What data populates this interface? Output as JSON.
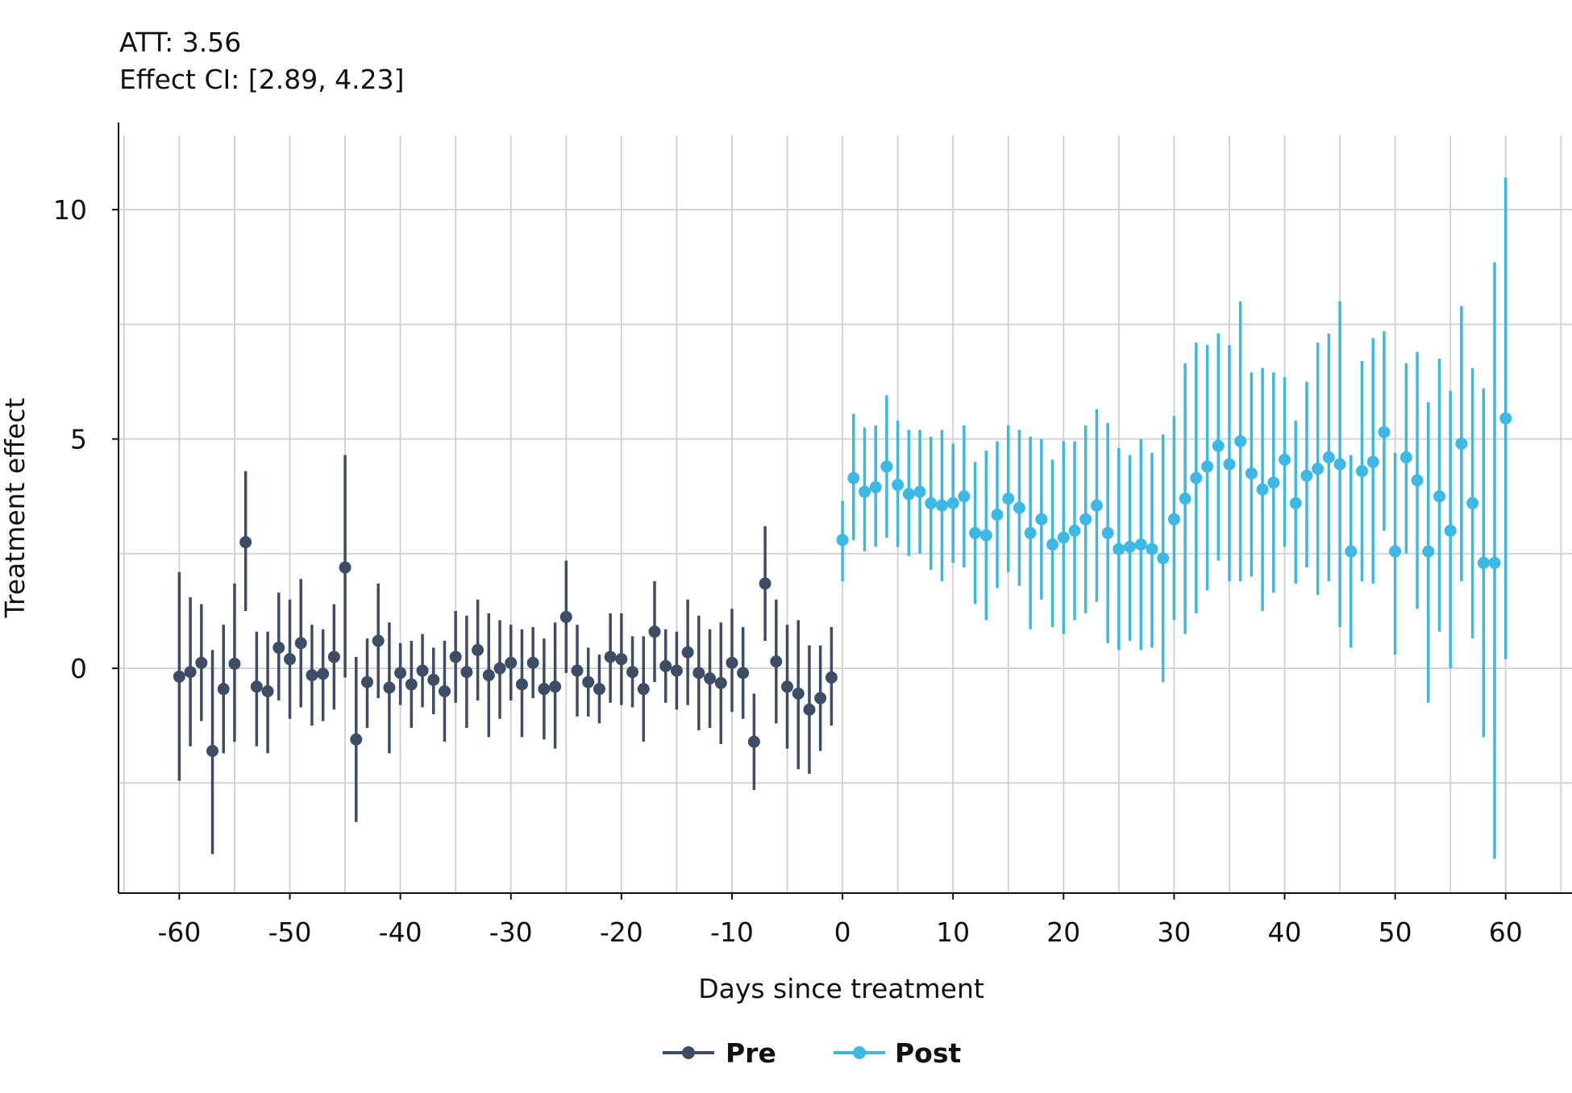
{
  "annotations": {
    "att": "ATT: 3.56",
    "ci": "Effect CI: [2.89, 4.23]"
  },
  "chart_data": {
    "type": "scatter",
    "xlabel": "Days since treatment",
    "ylabel": "Treatment effect",
    "xlim": [
      -65.5,
      66
    ],
    "ylim": [
      -4.9,
      11.9
    ],
    "x_ticks": [
      -60,
      -50,
      -40,
      -30,
      -20,
      -10,
      0,
      10,
      20,
      30,
      40,
      50,
      60
    ],
    "x_tick_labels": [
      "-60",
      "-50",
      "-40",
      "-30",
      "-20",
      "-10",
      "0",
      "10",
      "20",
      "30",
      "40",
      "50",
      "60"
    ],
    "y_ticks": [
      0,
      5,
      10
    ],
    "y_tick_labels": [
      "0",
      "5",
      "10"
    ],
    "x_gridlines": [
      -65,
      -60,
      -55,
      -50,
      -45,
      -40,
      -35,
      -30,
      -25,
      -20,
      -15,
      -10,
      -5,
      0,
      5,
      10,
      15,
      20,
      25,
      30,
      35,
      40,
      45,
      50,
      55,
      60,
      65
    ],
    "y_gridlines": [
      -2.5,
      0,
      2.5,
      5,
      7.5,
      10
    ],
    "grid": true,
    "legend": "bottom-center",
    "series": [
      {
        "name": "Pre",
        "color": "#3d4d66",
        "marker": "circle",
        "points": [
          {
            "x": -60,
            "y": -0.18,
            "lo": -2.45,
            "hi": 2.1
          },
          {
            "x": -59,
            "y": -0.08,
            "lo": -1.7,
            "hi": 1.55
          },
          {
            "x": -58,
            "y": 0.12,
            "lo": -1.15,
            "hi": 1.4
          },
          {
            "x": -57,
            "y": -1.8,
            "lo": -4.05,
            "hi": 0.4
          },
          {
            "x": -56,
            "y": -0.45,
            "lo": -1.85,
            "hi": 0.95
          },
          {
            "x": -55,
            "y": 0.1,
            "lo": -1.6,
            "hi": 1.85
          },
          {
            "x": -54,
            "y": 2.75,
            "lo": 1.25,
            "hi": 4.3
          },
          {
            "x": -53,
            "y": -0.4,
            "lo": -1.7,
            "hi": 0.8
          },
          {
            "x": -52,
            "y": -0.5,
            "lo": -1.85,
            "hi": 0.8
          },
          {
            "x": -51,
            "y": 0.45,
            "lo": -0.7,
            "hi": 1.65
          },
          {
            "x": -50,
            "y": 0.2,
            "lo": -1.1,
            "hi": 1.5
          },
          {
            "x": -49,
            "y": 0.55,
            "lo": -0.85,
            "hi": 1.95
          },
          {
            "x": -48,
            "y": -0.15,
            "lo": -1.25,
            "hi": 0.95
          },
          {
            "x": -47,
            "y": -0.12,
            "lo": -1.15,
            "hi": 0.85
          },
          {
            "x": -46,
            "y": 0.25,
            "lo": -0.9,
            "hi": 1.4
          },
          {
            "x": -45,
            "y": 2.2,
            "lo": -0.2,
            "hi": 4.65
          },
          {
            "x": -44,
            "y": -1.55,
            "lo": -3.35,
            "hi": 0.25
          },
          {
            "x": -43,
            "y": -0.3,
            "lo": -1.3,
            "hi": 0.65
          },
          {
            "x": -42,
            "y": 0.6,
            "lo": -0.65,
            "hi": 1.85
          },
          {
            "x": -41,
            "y": -0.42,
            "lo": -1.85,
            "hi": 1.0
          },
          {
            "x": -40,
            "y": -0.1,
            "lo": -0.8,
            "hi": 0.55
          },
          {
            "x": -39,
            "y": -0.35,
            "lo": -1.3,
            "hi": 0.6
          },
          {
            "x": -38,
            "y": -0.05,
            "lo": -0.85,
            "hi": 0.75
          },
          {
            "x": -37,
            "y": -0.25,
            "lo": -1.0,
            "hi": 0.45
          },
          {
            "x": -36,
            "y": -0.5,
            "lo": -1.6,
            "hi": 0.6
          },
          {
            "x": -35,
            "y": 0.25,
            "lo": -0.75,
            "hi": 1.25
          },
          {
            "x": -34,
            "y": -0.08,
            "lo": -1.3,
            "hi": 1.15
          },
          {
            "x": -33,
            "y": 0.4,
            "lo": -0.7,
            "hi": 1.5
          },
          {
            "x": -32,
            "y": -0.15,
            "lo": -1.5,
            "hi": 1.2
          },
          {
            "x": -31,
            "y": 0.0,
            "lo": -1.1,
            "hi": 1.05
          },
          {
            "x": -30,
            "y": 0.12,
            "lo": -0.7,
            "hi": 0.95
          },
          {
            "x": -29,
            "y": -0.35,
            "lo": -1.5,
            "hi": 0.85
          },
          {
            "x": -28,
            "y": 0.12,
            "lo": -0.65,
            "hi": 0.9
          },
          {
            "x": -27,
            "y": -0.45,
            "lo": -1.55,
            "hi": 0.65
          },
          {
            "x": -26,
            "y": -0.4,
            "lo": -1.75,
            "hi": 1.0
          },
          {
            "x": -25,
            "y": 1.12,
            "lo": -0.1,
            "hi": 2.35
          },
          {
            "x": -24,
            "y": -0.05,
            "lo": -1.05,
            "hi": 0.95
          },
          {
            "x": -23,
            "y": -0.3,
            "lo": -1.05,
            "hi": 0.45
          },
          {
            "x": -22,
            "y": -0.45,
            "lo": -1.2,
            "hi": 0.3
          },
          {
            "x": -21,
            "y": 0.25,
            "lo": -0.75,
            "hi": 1.2
          },
          {
            "x": -20,
            "y": 0.2,
            "lo": -0.8,
            "hi": 1.2
          },
          {
            "x": -19,
            "y": -0.08,
            "lo": -0.85,
            "hi": 0.7
          },
          {
            "x": -18,
            "y": -0.45,
            "lo": -1.6,
            "hi": 0.7
          },
          {
            "x": -17,
            "y": 0.8,
            "lo": -0.3,
            "hi": 1.9
          },
          {
            "x": -16,
            "y": 0.05,
            "lo": -0.75,
            "hi": 0.85
          },
          {
            "x": -15,
            "y": -0.05,
            "lo": -0.9,
            "hi": 0.8
          },
          {
            "x": -14,
            "y": 0.35,
            "lo": -0.8,
            "hi": 1.5
          },
          {
            "x": -13,
            "y": -0.1,
            "lo": -1.35,
            "hi": 1.15
          },
          {
            "x": -12,
            "y": -0.22,
            "lo": -1.3,
            "hi": 0.85
          },
          {
            "x": -11,
            "y": -0.32,
            "lo": -1.65,
            "hi": 1.0
          },
          {
            "x": -10,
            "y": 0.12,
            "lo": -0.95,
            "hi": 1.3
          },
          {
            "x": -9,
            "y": -0.1,
            "lo": -1.1,
            "hi": 0.9
          },
          {
            "x": -8,
            "y": -1.6,
            "lo": -2.65,
            "hi": -0.55
          },
          {
            "x": -7,
            "y": 1.85,
            "lo": 0.6,
            "hi": 3.1
          },
          {
            "x": -6,
            "y": 0.15,
            "lo": -1.2,
            "hi": 1.5
          },
          {
            "x": -5,
            "y": -0.4,
            "lo": -1.75,
            "hi": 0.95
          },
          {
            "x": -4,
            "y": -0.55,
            "lo": -2.2,
            "hi": 1.05
          },
          {
            "x": -3,
            "y": -0.9,
            "lo": -2.3,
            "hi": 0.5
          },
          {
            "x": -2,
            "y": -0.65,
            "lo": -1.8,
            "hi": 0.5
          },
          {
            "x": -1,
            "y": -0.2,
            "lo": -1.25,
            "hi": 0.9
          }
        ]
      },
      {
        "name": "Post",
        "color": "#3bb8e3",
        "marker": "circle",
        "points": [
          {
            "x": 0,
            "y": 2.8,
            "lo": 1.9,
            "hi": 3.65
          },
          {
            "x": 1,
            "y": 4.15,
            "lo": 2.8,
            "hi": 5.55
          },
          {
            "x": 2,
            "y": 3.85,
            "lo": 2.55,
            "hi": 5.25
          },
          {
            "x": 3,
            "y": 3.95,
            "lo": 2.65,
            "hi": 5.3
          },
          {
            "x": 4,
            "y": 4.4,
            "lo": 2.85,
            "hi": 5.95
          },
          {
            "x": 5,
            "y": 4.0,
            "lo": 2.65,
            "hi": 5.4
          },
          {
            "x": 6,
            "y": 3.8,
            "lo": 2.45,
            "hi": 5.2
          },
          {
            "x": 7,
            "y": 3.85,
            "lo": 2.5,
            "hi": 5.2
          },
          {
            "x": 8,
            "y": 3.6,
            "lo": 2.15,
            "hi": 5.05
          },
          {
            "x": 9,
            "y": 3.55,
            "lo": 1.9,
            "hi": 5.2
          },
          {
            "x": 10,
            "y": 3.6,
            "lo": 2.3,
            "hi": 4.9
          },
          {
            "x": 11,
            "y": 3.75,
            "lo": 2.2,
            "hi": 5.3
          },
          {
            "x": 12,
            "y": 2.95,
            "lo": 1.4,
            "hi": 4.5
          },
          {
            "x": 13,
            "y": 2.9,
            "lo": 1.05,
            "hi": 4.75
          },
          {
            "x": 14,
            "y": 3.35,
            "lo": 1.75,
            "hi": 4.95
          },
          {
            "x": 15,
            "y": 3.7,
            "lo": 2.1,
            "hi": 5.3
          },
          {
            "x": 16,
            "y": 3.5,
            "lo": 1.8,
            "hi": 5.2
          },
          {
            "x": 17,
            "y": 2.95,
            "lo": 0.85,
            "hi": 5.05
          },
          {
            "x": 18,
            "y": 3.25,
            "lo": 1.5,
            "hi": 5.0
          },
          {
            "x": 19,
            "y": 2.7,
            "lo": 0.9,
            "hi": 4.55
          },
          {
            "x": 20,
            "y": 2.85,
            "lo": 0.75,
            "hi": 4.95
          },
          {
            "x": 21,
            "y": 3.0,
            "lo": 1.05,
            "hi": 4.95
          },
          {
            "x": 22,
            "y": 3.25,
            "lo": 1.2,
            "hi": 5.3
          },
          {
            "x": 23,
            "y": 3.55,
            "lo": 1.45,
            "hi": 5.65
          },
          {
            "x": 24,
            "y": 2.95,
            "lo": 0.55,
            "hi": 5.35
          },
          {
            "x": 25,
            "y": 2.6,
            "lo": 0.4,
            "hi": 4.8
          },
          {
            "x": 26,
            "y": 2.65,
            "lo": 0.6,
            "hi": 4.65
          },
          {
            "x": 27,
            "y": 2.7,
            "lo": 0.4,
            "hi": 5.0
          },
          {
            "x": 28,
            "y": 2.6,
            "lo": 0.45,
            "hi": 4.7
          },
          {
            "x": 29,
            "y": 2.4,
            "lo": -0.3,
            "hi": 5.1
          },
          {
            "x": 30,
            "y": 3.25,
            "lo": 1.05,
            "hi": 5.5
          },
          {
            "x": 31,
            "y": 3.7,
            "lo": 0.75,
            "hi": 6.65
          },
          {
            "x": 32,
            "y": 4.15,
            "lo": 1.2,
            "hi": 7.1
          },
          {
            "x": 33,
            "y": 4.4,
            "lo": 1.7,
            "hi": 7.05
          },
          {
            "x": 34,
            "y": 4.85,
            "lo": 2.35,
            "hi": 7.3
          },
          {
            "x": 35,
            "y": 4.45,
            "lo": 1.9,
            "hi": 7.05
          },
          {
            "x": 36,
            "y": 4.95,
            "lo": 1.9,
            "hi": 8.0
          },
          {
            "x": 37,
            "y": 4.25,
            "lo": 2.0,
            "hi": 6.45
          },
          {
            "x": 38,
            "y": 3.9,
            "lo": 1.25,
            "hi": 6.55
          },
          {
            "x": 39,
            "y": 4.05,
            "lo": 1.65,
            "hi": 6.45
          },
          {
            "x": 40,
            "y": 4.55,
            "lo": 2.65,
            "hi": 6.35
          },
          {
            "x": 41,
            "y": 3.6,
            "lo": 1.85,
            "hi": 5.4
          },
          {
            "x": 42,
            "y": 4.2,
            "lo": 2.2,
            "hi": 6.25
          },
          {
            "x": 43,
            "y": 4.35,
            "lo": 1.6,
            "hi": 7.1
          },
          {
            "x": 44,
            "y": 4.6,
            "lo": 1.9,
            "hi": 7.3
          },
          {
            "x": 45,
            "y": 4.45,
            "lo": 0.9,
            "hi": 8.0
          },
          {
            "x": 46,
            "y": 2.55,
            "lo": 0.45,
            "hi": 4.65
          },
          {
            "x": 47,
            "y": 4.3,
            "lo": 1.9,
            "hi": 6.7
          },
          {
            "x": 48,
            "y": 4.5,
            "lo": 1.85,
            "hi": 7.2
          },
          {
            "x": 49,
            "y": 5.15,
            "lo": 3.0,
            "hi": 7.35
          },
          {
            "x": 50,
            "y": 2.55,
            "lo": 0.3,
            "hi": 4.7
          },
          {
            "x": 51,
            "y": 4.6,
            "lo": 2.5,
            "hi": 6.65
          },
          {
            "x": 52,
            "y": 4.1,
            "lo": 1.3,
            "hi": 6.9
          },
          {
            "x": 53,
            "y": 2.55,
            "lo": -0.75,
            "hi": 5.8
          },
          {
            "x": 54,
            "y": 3.75,
            "lo": 0.8,
            "hi": 6.75
          },
          {
            "x": 55,
            "y": 3.0,
            "lo": 0.0,
            "hi": 6.05
          },
          {
            "x": 56,
            "y": 4.9,
            "lo": 1.9,
            "hi": 7.9
          },
          {
            "x": 57,
            "y": 3.6,
            "lo": 0.65,
            "hi": 6.55
          },
          {
            "x": 58,
            "y": 2.3,
            "lo": -1.5,
            "hi": 6.1
          },
          {
            "x": 59,
            "y": 2.3,
            "lo": -4.15,
            "hi": 8.85
          },
          {
            "x": 60,
            "y": 5.45,
            "lo": 0.2,
            "hi": 10.7
          }
        ]
      }
    ]
  }
}
